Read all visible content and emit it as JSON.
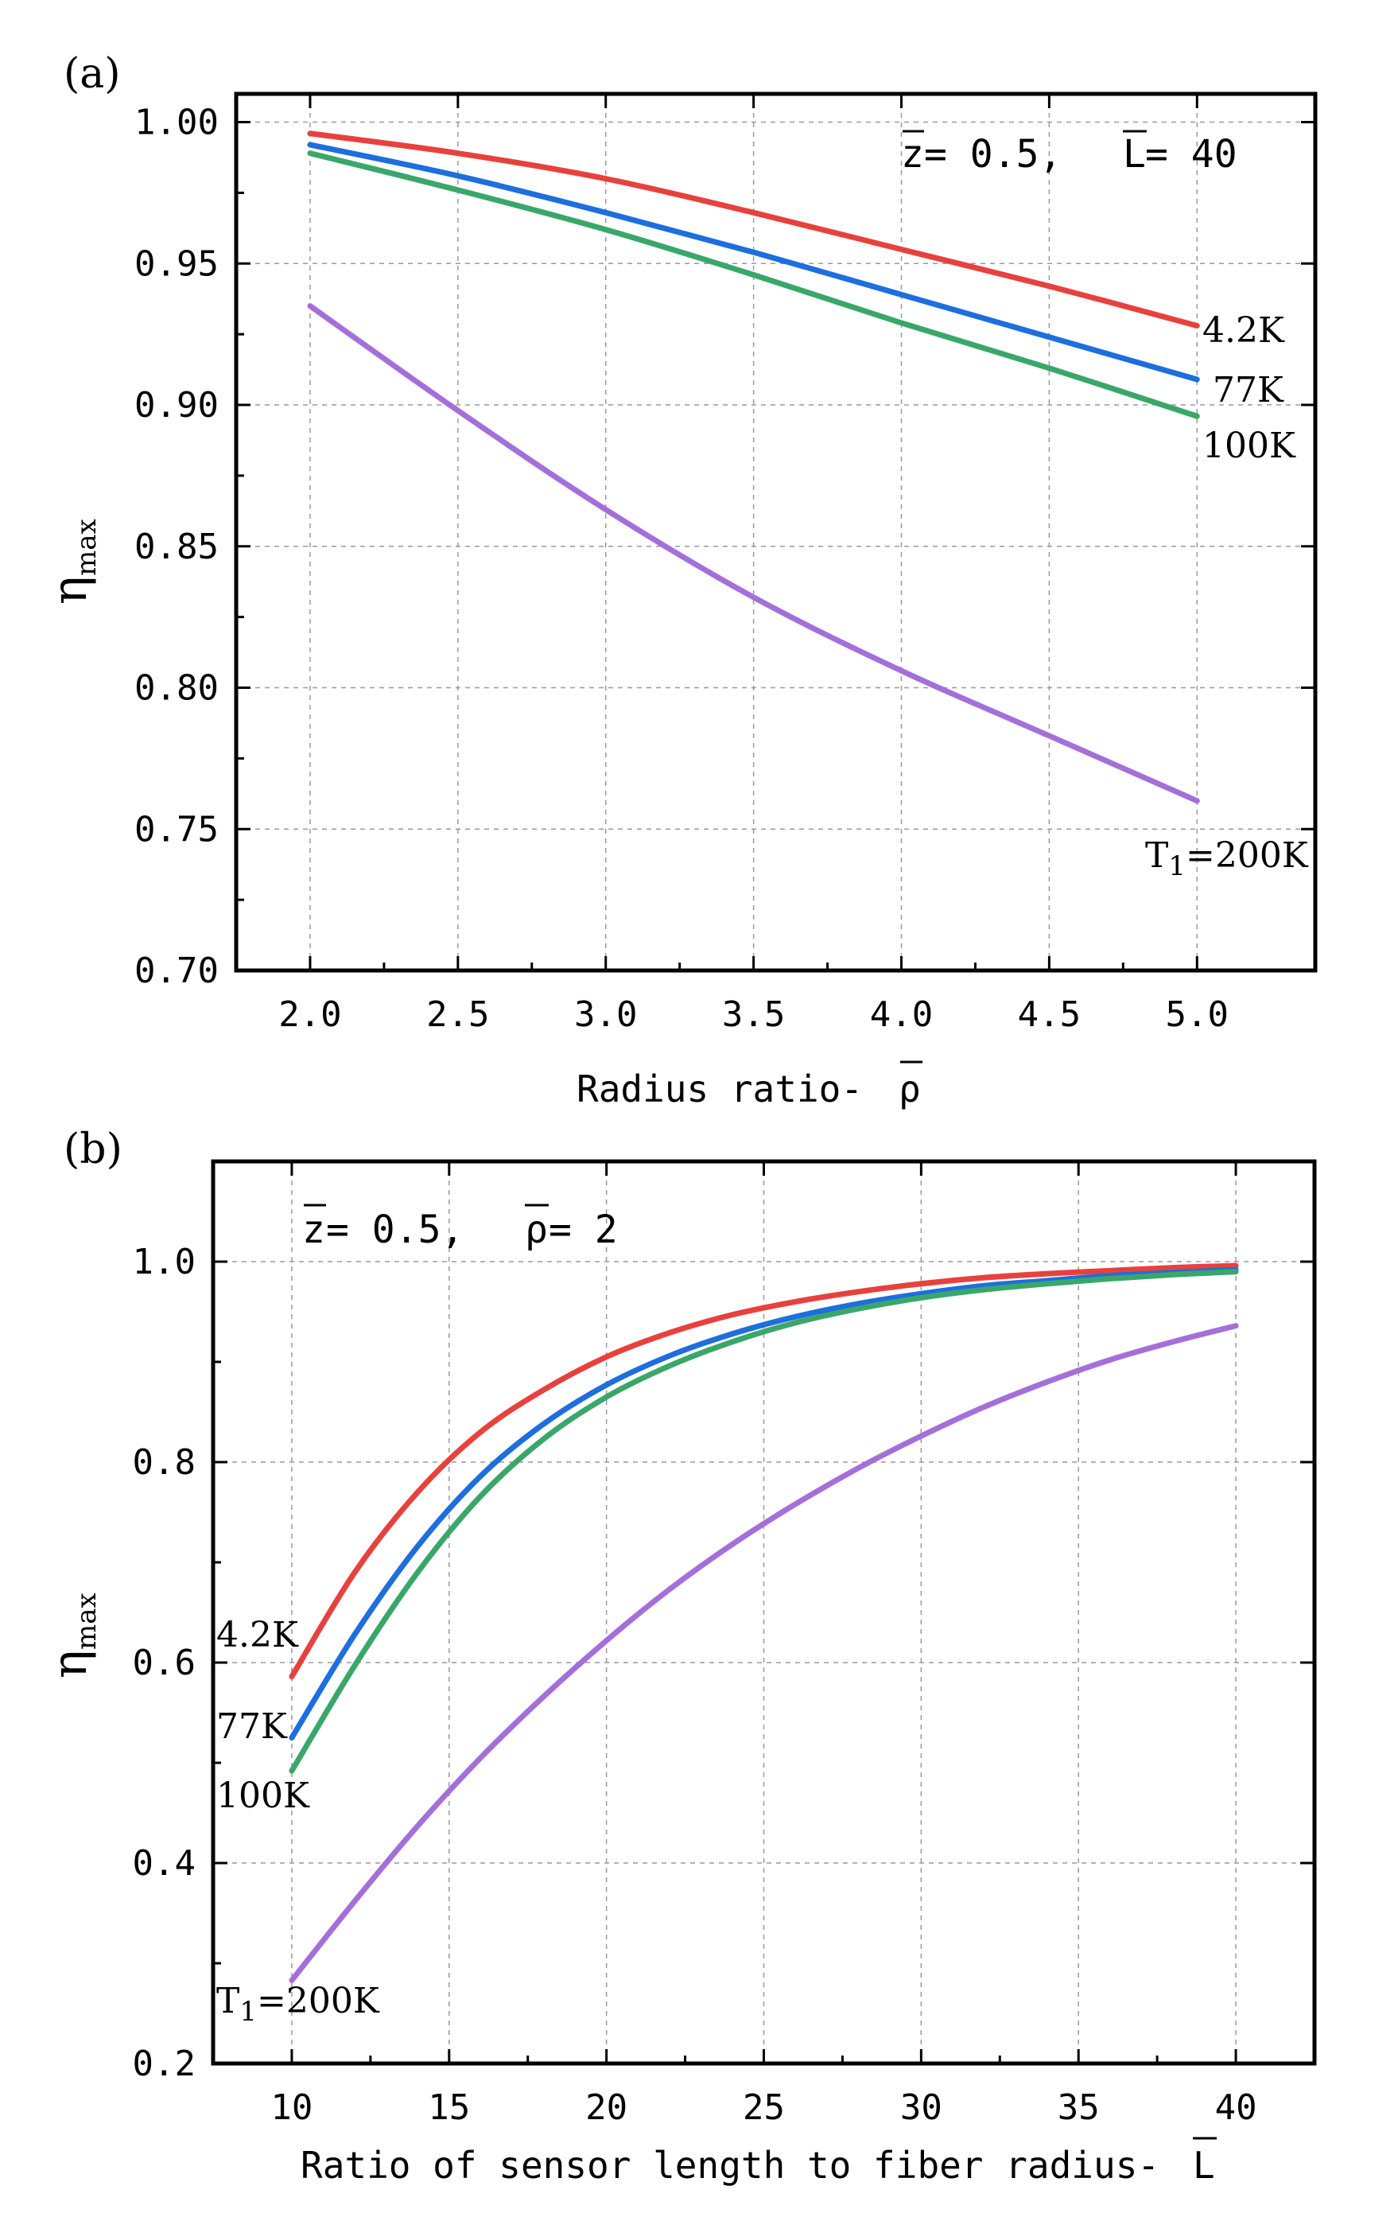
{
  "chart_data": [
    {
      "type": "line",
      "panel_label": "(a)",
      "annotation": {
        "z_bar": "z",
        "eq1": " = 0.5,",
        "L_bar": "L",
        "eq2": " = 40"
      },
      "xlabel": "Radius ratio-",
      "xlabel_symbol": "ρ",
      "ylabel": "η",
      "ylabel_sub": "max",
      "xlim": [
        1.75,
        5.4
      ],
      "ylim": [
        0.7,
        1.01
      ],
      "xticks": [
        2.0,
        2.5,
        3.0,
        3.5,
        4.0,
        4.5,
        5.0
      ],
      "xtick_labels": [
        "2.0",
        "2.5",
        "3.0",
        "3.5",
        "4.0",
        "4.5",
        "5.0"
      ],
      "yticks": [
        0.7,
        0.75,
        0.8,
        0.85,
        0.9,
        0.95,
        1.0
      ],
      "ytick_labels": [
        "0.70",
        "0.75",
        "0.80",
        "0.85",
        "0.90",
        "0.95",
        "1.00"
      ],
      "x": [
        2.0,
        2.5,
        3.0,
        3.5,
        4.0,
        4.5,
        5.0
      ],
      "series": [
        {
          "name": "4.2K",
          "color": "#e8413d",
          "values": [
            0.996,
            0.989,
            0.98,
            0.968,
            0.955,
            0.942,
            0.928
          ]
        },
        {
          "name": "77K",
          "color": "#1d6ede",
          "values": [
            0.992,
            0.981,
            0.968,
            0.954,
            0.939,
            0.924,
            0.909
          ]
        },
        {
          "name": "100K",
          "color": "#3aa76a",
          "values": [
            0.989,
            0.976,
            0.962,
            0.946,
            0.929,
            0.913,
            0.896
          ]
        },
        {
          "name": "T1=200K",
          "color": "#a56fda",
          "values": [
            0.935,
            0.898,
            0.863,
            0.832,
            0.806,
            0.783,
            0.76
          ]
        }
      ],
      "series_labels": [
        {
          "text": "4.2K",
          "sub": ""
        },
        {
          "text": "77K",
          "sub": ""
        },
        {
          "text": "100K",
          "sub": ""
        },
        {
          "text": "T",
          "sub": "1",
          "rest": "=200K"
        }
      ]
    },
    {
      "type": "line",
      "panel_label": "(b)",
      "annotation": {
        "z_bar": "z",
        "eq1": " = 0.5,",
        "rho_bar": "ρ",
        "eq2": " = 2"
      },
      "xlabel": "Ratio of sensor length to fiber radius-",
      "xlabel_symbol": "L",
      "ylabel": "η",
      "ylabel_sub": "max",
      "xlim": [
        7.5,
        42.5
      ],
      "ylim": [
        0.2,
        1.1
      ],
      "xticks": [
        10,
        15,
        20,
        25,
        30,
        35,
        40
      ],
      "xtick_labels": [
        "10",
        "15",
        "20",
        "25",
        "30",
        "35",
        "40"
      ],
      "yticks": [
        0.2,
        0.4,
        0.6,
        0.8,
        1.0
      ],
      "ytick_labels": [
        "0.2",
        "0.4",
        "0.6",
        "0.8",
        "1.0"
      ],
      "x": [
        10,
        12,
        14,
        16,
        18,
        20,
        22,
        24,
        26,
        28,
        30,
        32,
        34,
        36,
        38,
        40
      ],
      "series": [
        {
          "name": "4.2K",
          "color": "#e8413d",
          "values": [
            0.586,
            0.69,
            0.77,
            0.83,
            0.872,
            0.905,
            0.929,
            0.947,
            0.96,
            0.97,
            0.978,
            0.984,
            0.988,
            0.991,
            0.994,
            0.996
          ]
        },
        {
          "name": "77K",
          "color": "#1d6ede",
          "values": [
            0.525,
            0.628,
            0.716,
            0.786,
            0.838,
            0.877,
            0.906,
            0.928,
            0.945,
            0.958,
            0.968,
            0.976,
            0.981,
            0.986,
            0.989,
            0.992
          ]
        },
        {
          "name": "100K",
          "color": "#3aa76a",
          "values": [
            0.492,
            0.597,
            0.69,
            0.766,
            0.823,
            0.865,
            0.896,
            0.92,
            0.939,
            0.953,
            0.964,
            0.972,
            0.978,
            0.983,
            0.987,
            0.99
          ]
        },
        {
          "name": "T1=200K",
          "color": "#a56fda",
          "values": [
            0.283,
            0.362,
            0.437,
            0.505,
            0.566,
            0.622,
            0.673,
            0.718,
            0.758,
            0.794,
            0.826,
            0.855,
            0.88,
            0.902,
            0.92,
            0.936
          ]
        }
      ],
      "series_labels": [
        {
          "text": "4.2K",
          "sub": ""
        },
        {
          "text": "77K",
          "sub": ""
        },
        {
          "text": "100K",
          "sub": ""
        },
        {
          "text": "T",
          "sub": "1",
          "rest": "=200K"
        }
      ]
    }
  ]
}
